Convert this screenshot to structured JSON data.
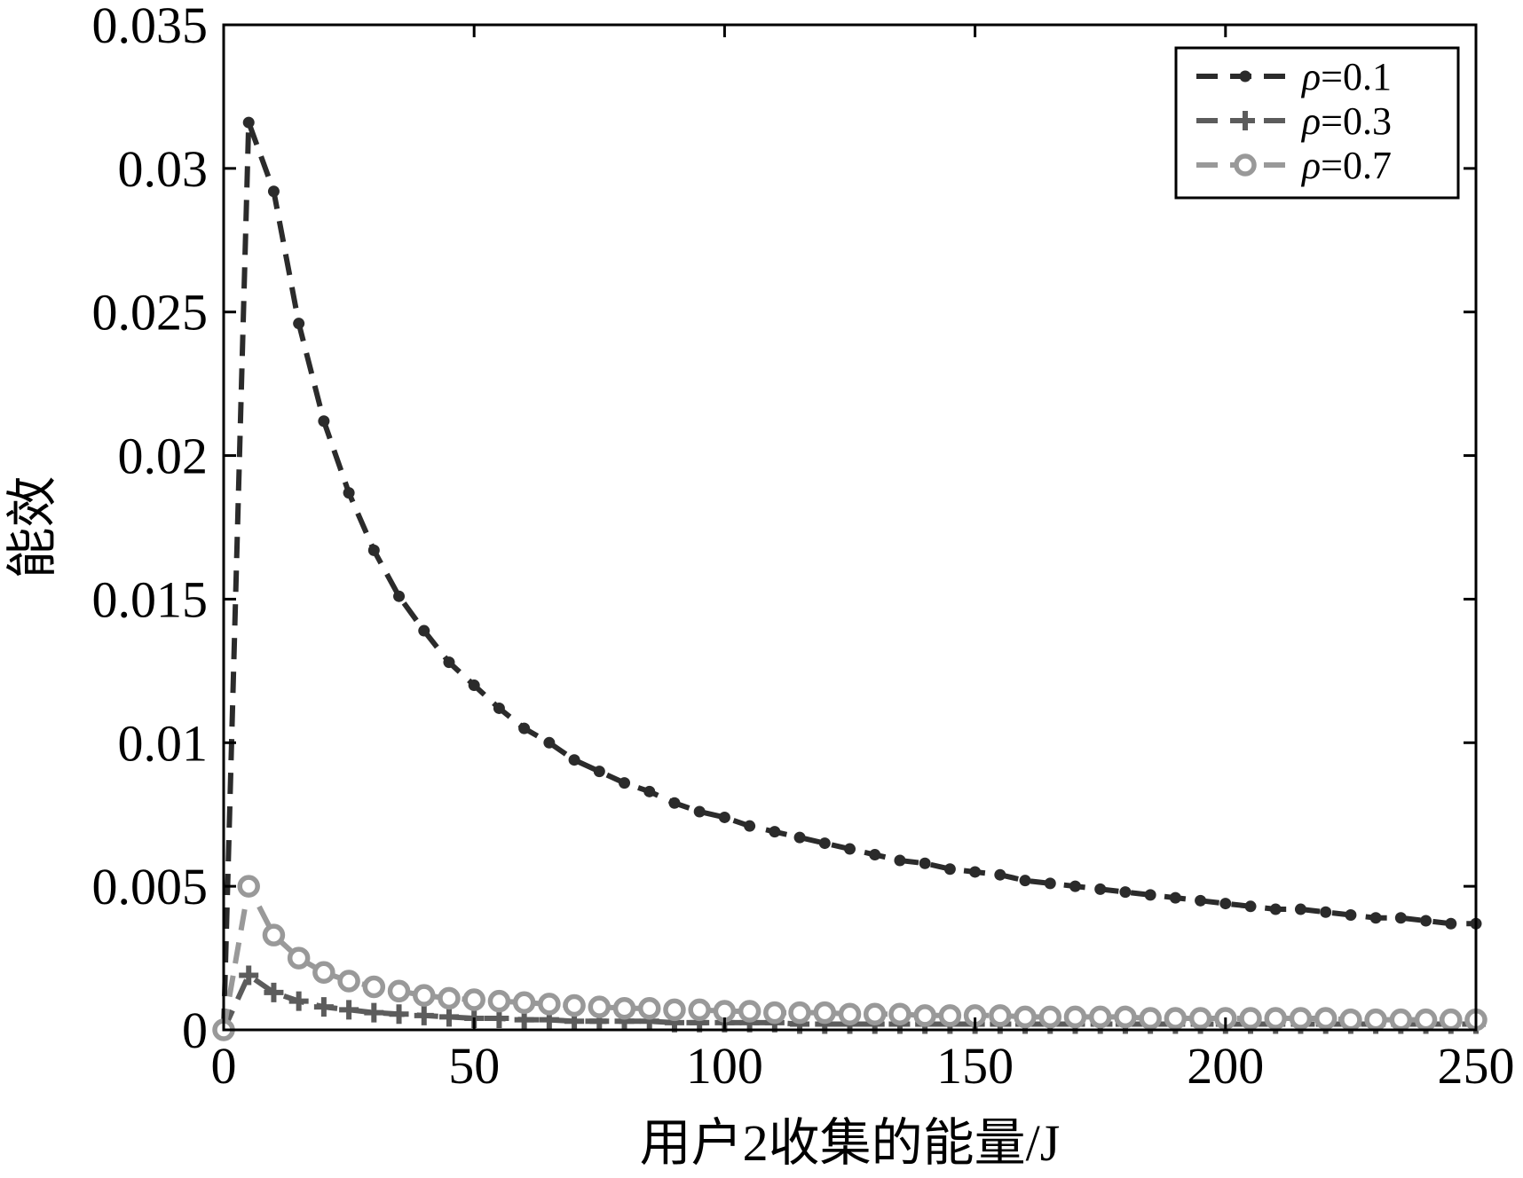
{
  "chart_data": {
    "type": "line",
    "xlabel": "用户2收集的能量/J",
    "ylabel": "能效",
    "xlim": [
      0,
      250
    ],
    "ylim": [
      0,
      0.035
    ],
    "xticks": [
      0,
      50,
      100,
      150,
      200,
      250
    ],
    "xtick_labels": [
      "0",
      "50",
      "100",
      "150",
      "200",
      "250"
    ],
    "yticks": [
      0,
      0.005,
      0.01,
      0.015,
      0.02,
      0.025,
      0.03,
      0.035
    ],
    "ytick_labels": [
      "0",
      "0.005",
      "0.01",
      "0.015",
      "0.02",
      "0.025",
      "0.03",
      "0.035"
    ],
    "grid": false,
    "legend": {
      "position": "top-right"
    },
    "series": [
      {
        "name": "ρ=0.1",
        "legend_prefix": "ρ",
        "legend_suffix": "=0.1",
        "color": "#2b2b2b",
        "marker": "dot",
        "x": [
          0,
          5,
          10,
          15,
          20,
          25,
          30,
          35,
          40,
          45,
          50,
          55,
          60,
          65,
          70,
          75,
          80,
          85,
          90,
          95,
          100,
          105,
          110,
          115,
          120,
          125,
          130,
          135,
          140,
          145,
          150,
          155,
          160,
          165,
          170,
          175,
          180,
          185,
          190,
          195,
          200,
          205,
          210,
          215,
          220,
          225,
          230,
          235,
          240,
          245,
          250
        ],
        "y": [
          0,
          0.0316,
          0.0292,
          0.0246,
          0.0212,
          0.0187,
          0.0167,
          0.0151,
          0.0139,
          0.0128,
          0.012,
          0.0112,
          0.0105,
          0.01,
          0.0094,
          0.009,
          0.0086,
          0.0083,
          0.0079,
          0.0076,
          0.0074,
          0.0071,
          0.0069,
          0.0067,
          0.0065,
          0.0063,
          0.0061,
          0.0059,
          0.0058,
          0.0056,
          0.0055,
          0.0054,
          0.0052,
          0.0051,
          0.005,
          0.0049,
          0.0048,
          0.0047,
          0.0046,
          0.0045,
          0.0044,
          0.0043,
          0.0042,
          0.0042,
          0.0041,
          0.004,
          0.0039,
          0.0039,
          0.0038,
          0.0037,
          0.0037
        ]
      },
      {
        "name": "ρ=0.3",
        "legend_prefix": "ρ",
        "legend_suffix": "=0.3",
        "color": "#5c5c5c",
        "marker": "plus",
        "x": [
          0,
          5,
          10,
          15,
          20,
          25,
          30,
          35,
          40,
          45,
          50,
          55,
          60,
          65,
          70,
          75,
          80,
          85,
          90,
          95,
          100,
          105,
          110,
          115,
          120,
          125,
          130,
          135,
          140,
          145,
          150,
          155,
          160,
          165,
          170,
          175,
          180,
          185,
          190,
          195,
          200,
          205,
          210,
          215,
          220,
          225,
          230,
          235,
          240,
          245,
          250
        ],
        "y": [
          0,
          0.0019,
          0.0013,
          0.001,
          0.0008,
          0.0007,
          0.0006,
          0.00055,
          0.0005,
          0.00045,
          0.0004,
          0.0004,
          0.00035,
          0.00035,
          0.0003,
          0.0003,
          0.0003,
          0.0003,
          0.00025,
          0.00025,
          0.00025,
          0.00025,
          0.00025,
          0.0002,
          0.0002,
          0.0002,
          0.0002,
          0.0002,
          0.0002,
          0.0002,
          0.0002,
          0.0002,
          0.0002,
          0.0002,
          0.0002,
          0.0002,
          0.0002,
          0.0002,
          0.0002,
          0.0002,
          0.0002,
          0.0002,
          0.0002,
          0.0002,
          0.0002,
          0.0002,
          0.0002,
          0.0002,
          0.0002,
          0.0002,
          0.0002
        ]
      },
      {
        "name": "ρ=0.7",
        "legend_prefix": "ρ",
        "legend_suffix": "=0.7",
        "color": "#999999",
        "marker": "circle",
        "x": [
          0,
          5,
          10,
          15,
          20,
          25,
          30,
          35,
          40,
          45,
          50,
          55,
          60,
          65,
          70,
          75,
          80,
          85,
          90,
          95,
          100,
          105,
          110,
          115,
          120,
          125,
          130,
          135,
          140,
          145,
          150,
          155,
          160,
          165,
          170,
          175,
          180,
          185,
          190,
          195,
          200,
          205,
          210,
          215,
          220,
          225,
          230,
          235,
          240,
          245,
          250
        ],
        "y": [
          0,
          0.005,
          0.0033,
          0.0025,
          0.002,
          0.0017,
          0.0015,
          0.00135,
          0.0012,
          0.0011,
          0.00105,
          0.001,
          0.00095,
          0.0009,
          0.00085,
          0.0008,
          0.00075,
          0.00075,
          0.0007,
          0.0007,
          0.00065,
          0.00065,
          0.0006,
          0.0006,
          0.0006,
          0.00055,
          0.00055,
          0.00055,
          0.0005,
          0.0005,
          0.0005,
          0.0005,
          0.00045,
          0.00045,
          0.00045,
          0.00045,
          0.00045,
          0.0004,
          0.0004,
          0.0004,
          0.0004,
          0.0004,
          0.0004,
          0.0004,
          0.0004,
          0.00035,
          0.00035,
          0.00035,
          0.00035,
          0.00035,
          0.00035
        ]
      }
    ]
  }
}
